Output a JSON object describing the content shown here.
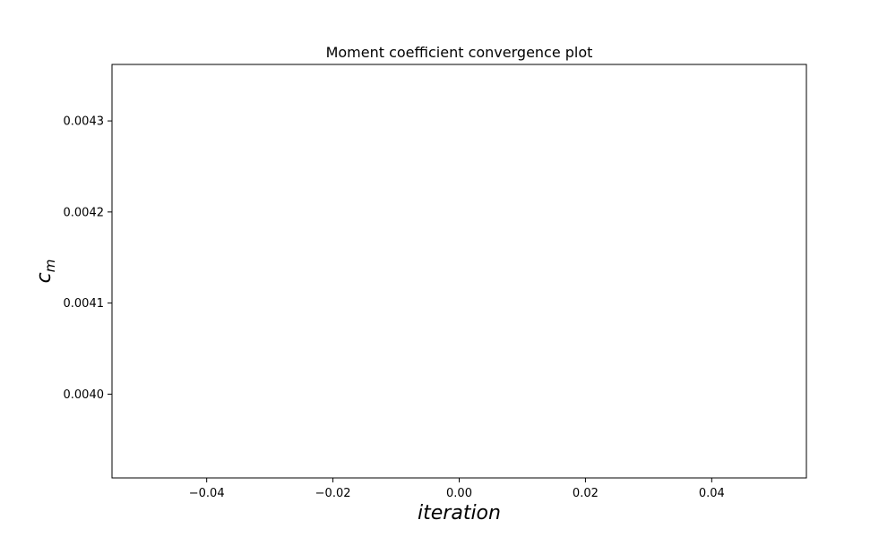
{
  "chart_data": {
    "type": "line",
    "title": "Moment coefficient convergence plot",
    "xlabel": "iteration",
    "ylabel": {
      "main": "c",
      "subscript": "m"
    },
    "xlim": [
      -0.055,
      0.055
    ],
    "ylim": [
      0.003908,
      0.004362
    ],
    "x_ticks": [
      {
        "value": -0.04,
        "label": "−0.04"
      },
      {
        "value": -0.02,
        "label": "−0.02"
      },
      {
        "value": 0.0,
        "label": "0.00"
      },
      {
        "value": 0.02,
        "label": "0.02"
      },
      {
        "value": 0.04,
        "label": "0.04"
      }
    ],
    "y_ticks": [
      {
        "value": 0.004,
        "label": "0.0040"
      },
      {
        "value": 0.0041,
        "label": "0.0041"
      },
      {
        "value": 0.0042,
        "label": "0.0042"
      },
      {
        "value": 0.0043,
        "label": "0.0043"
      }
    ],
    "grid": false,
    "series": []
  },
  "colors": {
    "axes": "#000000",
    "background": "#ffffff"
  }
}
